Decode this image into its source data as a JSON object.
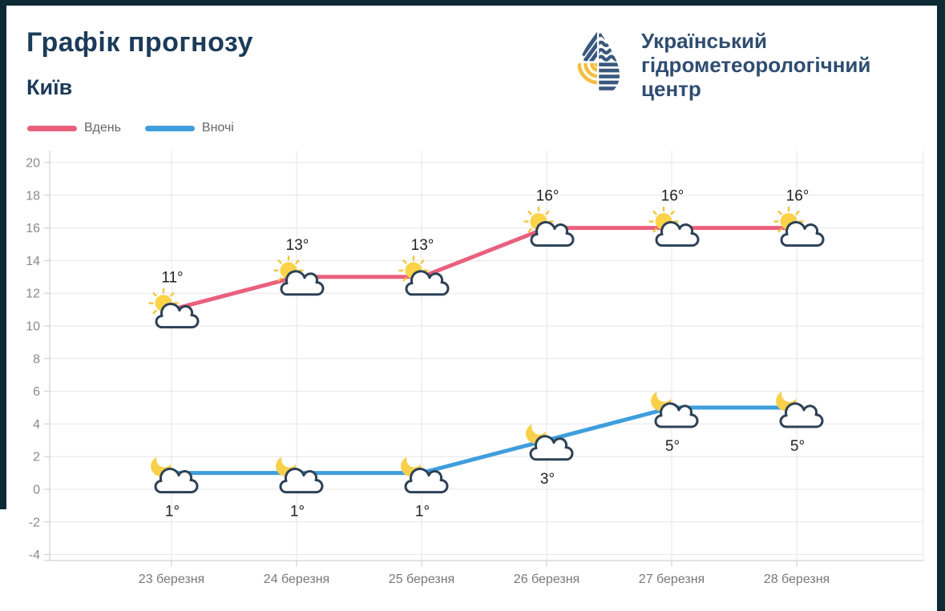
{
  "header": {
    "title": "Графік прогнозу",
    "subtitle": "Київ",
    "logo": {
      "line1": "Український",
      "line2": "гідрометеорологічний",
      "line3": "центр"
    }
  },
  "legend": {
    "day": "Вдень",
    "night": "Вночі"
  },
  "colors": {
    "frame": "#0d2a35",
    "title_navy": "#1c3b59",
    "logo_navy": "#3a587e",
    "logo_yellow": "#f4be41",
    "day_line": "#e9607d",
    "night_line": "#3f9edc",
    "cloud_outline": "#2d4156",
    "sun_moon_yellow": "#f8d04b"
  },
  "chart_data": {
    "type": "line",
    "title": "Графік прогнозу",
    "subtitle": "Київ",
    "categories": [
      "23 березня",
      "24 березня",
      "25 березня",
      "26 березня",
      "27 березня",
      "28 березня"
    ],
    "series": [
      {
        "name": "Вдень",
        "values": [
          11,
          13,
          13,
          16,
          16,
          16
        ],
        "labels": [
          "11°",
          "13°",
          "13°",
          "16°",
          "16°",
          "16°"
        ],
        "color": "#e9607d",
        "icon": "sun-behind-cloud"
      },
      {
        "name": "Вночі",
        "values": [
          1,
          1,
          1,
          3,
          5,
          5
        ],
        "labels": [
          "1°",
          "1°",
          "1°",
          "3°",
          "5°",
          "5°"
        ],
        "color": "#3f9edc",
        "icon": "moon-behind-cloud"
      }
    ],
    "yticks": [
      20,
      18,
      16,
      14,
      12,
      10,
      8,
      6,
      4,
      2,
      0,
      -2,
      -4
    ],
    "ylim": [
      -4,
      20
    ],
    "grid": true,
    "grid_color": "#e6e6e6",
    "axis_color": "#c9c9c9",
    "legend_position": "top-left"
  }
}
